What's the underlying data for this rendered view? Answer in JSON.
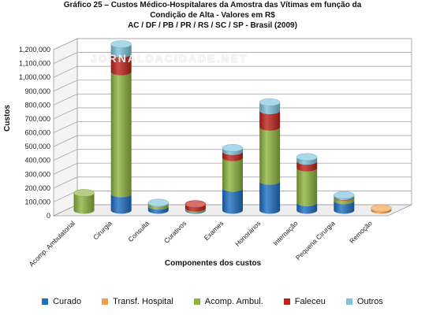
{
  "chart_data": {
    "type": "bar",
    "title_lines": [
      "Gráfico 25 – Custos Médico-Hospitalares da Amostra das Vítimas em função da",
      "Condição de Alta - Valores em R$",
      "AC / DF / PB / PR / RS / SC / SP - Brasil (2009)"
    ],
    "xlabel": "Componentes dos custos",
    "ylabel": "Custos",
    "ylim": [
      0,
      1200000
    ],
    "yticks": [
      "0",
      "100,000",
      "200,000",
      "300,000",
      "400,000",
      "500,000",
      "600,000",
      "700,000",
      "800,000",
      "900,000",
      "1,000,000",
      "1,100,000",
      "1,200,000"
    ],
    "categories": [
      "Acomp. Ambulatorial",
      "Cirurgia",
      "Consulta",
      "Curativos",
      "Exames",
      "Honorários",
      "Internação",
      "Pequena Cirurgia",
      "Remoção"
    ],
    "series": [
      {
        "name": "Curado",
        "color": "#1f6fc4",
        "values": [
          0,
          120000,
          30000,
          5000,
          160000,
          210000,
          55000,
          70000,
          0
        ]
      },
      {
        "name": "Transf. Hospital",
        "color": "#f0a050",
        "values": [
          0,
          0,
          0,
          0,
          0,
          0,
          0,
          0,
          15000
        ]
      },
      {
        "name": "Acomp. Ambul.",
        "color": "#8db43e",
        "values": [
          125000,
          880000,
          20000,
          10000,
          220000,
          390000,
          250000,
          25000,
          0
        ]
      },
      {
        "name": "Faleceu",
        "color": "#c0221a",
        "values": [
          0,
          130000,
          0,
          30000,
          45000,
          120000,
          50000,
          5000,
          0
        ]
      },
      {
        "name": "Outros",
        "color": "#7ec3dc",
        "values": [
          0,
          70000,
          5000,
          0,
          25000,
          60000,
          30000,
          10000,
          0
        ]
      }
    ],
    "grid": true,
    "legend_position": "bottom",
    "three_d": true
  },
  "watermark": "JORNALDACIDADE.NET"
}
